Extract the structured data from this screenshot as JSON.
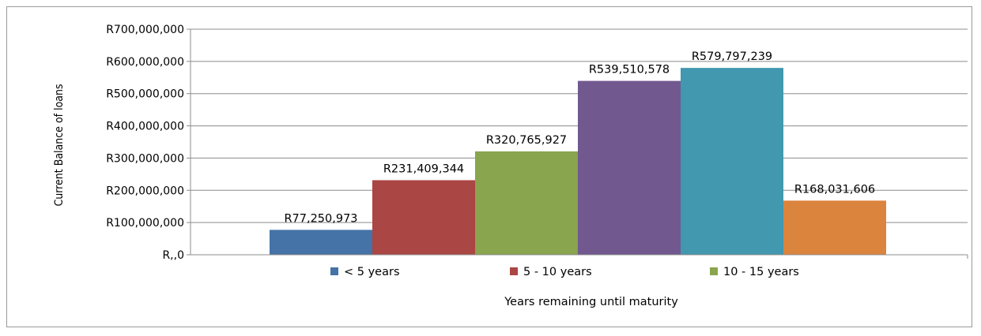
{
  "chart_data": {
    "type": "bar",
    "ylabel": "Current Balance of loans",
    "xlabel": "Years remaining until maturity",
    "ylim": [
      0,
      700000000
    ],
    "y_ticks": [
      {
        "value": 0,
        "label": "R,,0"
      },
      {
        "value": 100000000,
        "label": "R100,000,000"
      },
      {
        "value": 200000000,
        "label": "R200,000,000"
      },
      {
        "value": 300000000,
        "label": "R300,000,000"
      },
      {
        "value": 400000000,
        "label": "R400,000,000"
      },
      {
        "value": 500000000,
        "label": "R500,000,000"
      },
      {
        "value": 600000000,
        "label": "R600,000,000"
      },
      {
        "value": 700000000,
        "label": "R700,000,000"
      }
    ],
    "grid": true,
    "legend_position": "bottom",
    "legend": [
      {
        "label": "< 5 years",
        "color": "#4572A7"
      },
      {
        "label": "5 - 10 years",
        "color": "#AA4643"
      },
      {
        "label": "10 - 15 years",
        "color": "#89A54E"
      }
    ],
    "bars": [
      {
        "value": 77250973,
        "label": "R77,250,973",
        "color": "#4572A7"
      },
      {
        "value": 231409344,
        "label": "R231,409,344",
        "color": "#AA4643"
      },
      {
        "value": 320765927,
        "label": "R320,765,927",
        "color": "#89A54E"
      },
      {
        "value": 539510578,
        "label": "R539,510,578",
        "color": "#71588F"
      },
      {
        "value": 579797239,
        "label": "R579,797,239",
        "color": "#4198AF"
      },
      {
        "value": 168031606,
        "label": "R168,031,606",
        "color": "#DB843D"
      }
    ]
  }
}
